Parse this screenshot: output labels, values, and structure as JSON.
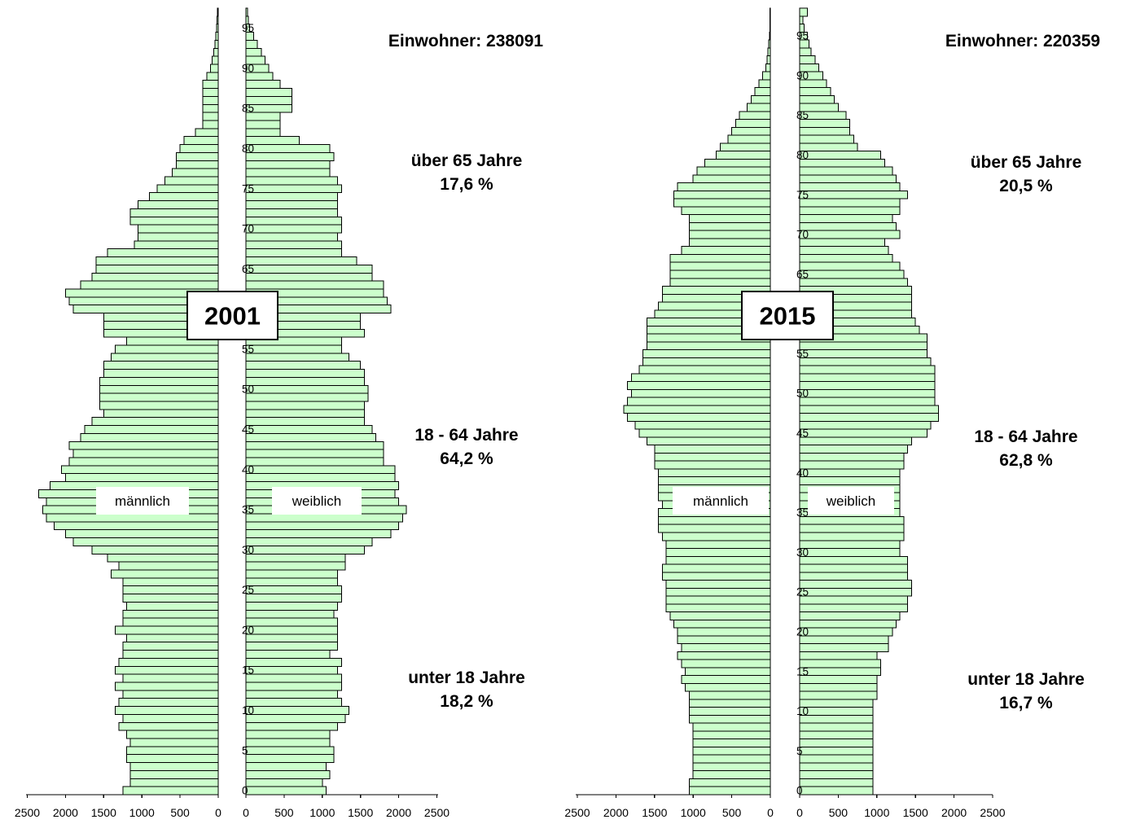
{
  "chart_data": [
    {
      "type": "bar",
      "orientation": "horizontal",
      "subtype": "population-pyramid",
      "year": "2001",
      "population_label": "Einwohner: 238091",
      "male_label": "männlich",
      "female_label": "weiblich",
      "age_groups": [
        {
          "label": "über 65 Jahre",
          "share": "17,6 %"
        },
        {
          "label": "18 - 64 Jahre",
          "share": "64,2 %"
        },
        {
          "label": "unter 18 Jahre",
          "share": "18,2 %"
        }
      ],
      "x_ticks_male": [
        "2500",
        "2000",
        "1500",
        "1000",
        "500",
        "0"
      ],
      "x_ticks_female": [
        "0",
        "500",
        "1000",
        "1500",
        "2000",
        "2500"
      ],
      "y_ticks": [
        "0",
        "5",
        "10",
        "15",
        "20",
        "25",
        "30",
        "35",
        "40",
        "45",
        "50",
        "55",
        "60",
        "65",
        "70",
        "75",
        "80",
        "85",
        "90",
        "95"
      ],
      "xlim": [
        0,
        2500
      ],
      "ylim": [
        0,
        99
      ],
      "male": [
        1250,
        1150,
        1150,
        1150,
        1200,
        1200,
        1150,
        1200,
        1300,
        1250,
        1350,
        1300,
        1250,
        1350,
        1250,
        1350,
        1300,
        1250,
        1250,
        1200,
        1350,
        1250,
        1250,
        1200,
        1250,
        1250,
        1250,
        1400,
        1300,
        1450,
        1650,
        1900,
        2000,
        2150,
        2250,
        2300,
        2250,
        2350,
        2200,
        2000,
        2050,
        1950,
        1900,
        1950,
        1800,
        1750,
        1650,
        1500,
        1550,
        1550,
        1550,
        1550,
        1500,
        1500,
        1400,
        1350,
        1200,
        1500,
        1500,
        1500,
        1900,
        1950,
        2000,
        1800,
        1650,
        1600,
        1600,
        1450,
        1100,
        1050,
        1050,
        1150,
        1150,
        1050,
        900,
        800,
        700,
        600,
        550,
        550,
        500,
        450,
        300,
        200,
        200,
        200,
        200,
        200,
        200,
        150,
        100,
        80,
        60,
        40,
        30,
        20,
        15,
        10
      ],
      "female": [
        1050,
        1000,
        1100,
        1050,
        1150,
        1150,
        1100,
        1100,
        1200,
        1300,
        1350,
        1250,
        1200,
        1250,
        1250,
        1200,
        1250,
        1100,
        1200,
        1200,
        1200,
        1200,
        1150,
        1200,
        1250,
        1250,
        1200,
        1200,
        1300,
        1300,
        1550,
        1650,
        1900,
        2000,
        2050,
        2100,
        2000,
        1950,
        2000,
        1950,
        1950,
        1800,
        1800,
        1800,
        1700,
        1650,
        1550,
        1550,
        1550,
        1600,
        1600,
        1550,
        1550,
        1500,
        1350,
        1250,
        1250,
        1550,
        1500,
        1500,
        1900,
        1850,
        1800,
        1800,
        1650,
        1650,
        1450,
        1250,
        1250,
        1200,
        1250,
        1250,
        1200,
        1200,
        1200,
        1250,
        1200,
        1100,
        1100,
        1150,
        1100,
        700,
        450,
        450,
        450,
        600,
        600,
        600,
        450,
        350,
        300,
        250,
        200,
        150,
        100,
        50,
        30,
        20,
        40
      ]
    },
    {
      "type": "bar",
      "orientation": "horizontal",
      "subtype": "population-pyramid",
      "year": "2015",
      "population_label": "Einwohner: 220359",
      "male_label": "männlich",
      "female_label": "weiblich",
      "age_groups": [
        {
          "label": "über 65 Jahre",
          "share": "20,5 %"
        },
        {
          "label": "18 - 64 Jahre",
          "share": "62,8 %"
        },
        {
          "label": "unter 18 Jahre",
          "share": "16,7 %"
        }
      ],
      "x_ticks_male": [
        "2500",
        "2000",
        "1500",
        "1000",
        "500",
        "0"
      ],
      "x_ticks_female": [
        "0",
        "500",
        "1000",
        "1500",
        "2000",
        "2500"
      ],
      "y_ticks": [
        "0",
        "5",
        "10",
        "15",
        "20",
        "25",
        "30",
        "35",
        "40",
        "45",
        "50",
        "55",
        "60",
        "65",
        "70",
        "75",
        "80",
        "85",
        "90",
        "95"
      ],
      "xlim": [
        0,
        2500
      ],
      "ylim": [
        0,
        99
      ],
      "male": [
        1050,
        1050,
        1000,
        1000,
        1000,
        1000,
        1000,
        1000,
        1000,
        1050,
        1050,
        1050,
        1050,
        1100,
        1150,
        1100,
        1150,
        1200,
        1150,
        1200,
        1200,
        1250,
        1300,
        1350,
        1350,
        1350,
        1350,
        1400,
        1400,
        1350,
        1350,
        1350,
        1400,
        1450,
        1450,
        1450,
        1400,
        1450,
        1450,
        1450,
        1450,
        1500,
        1500,
        1500,
        1600,
        1700,
        1750,
        1850,
        1900,
        1850,
        1800,
        1850,
        1800,
        1700,
        1650,
        1650,
        1600,
        1600,
        1600,
        1600,
        1500,
        1450,
        1400,
        1400,
        1300,
        1300,
        1300,
        1300,
        1150,
        1050,
        1050,
        1050,
        1050,
        1150,
        1250,
        1250,
        1200,
        1000,
        950,
        850,
        700,
        650,
        550,
        500,
        450,
        400,
        300,
        250,
        200,
        150,
        100,
        60,
        40,
        30,
        20,
        10,
        5,
        5,
        5
      ],
      "female": [
        950,
        950,
        950,
        950,
        950,
        950,
        950,
        950,
        950,
        950,
        950,
        950,
        1000,
        1000,
        1000,
        1050,
        1050,
        1000,
        1150,
        1150,
        1200,
        1250,
        1300,
        1400,
        1400,
        1450,
        1450,
        1400,
        1400,
        1400,
        1300,
        1300,
        1350,
        1350,
        1350,
        1300,
        1300,
        1300,
        1300,
        1300,
        1300,
        1350,
        1350,
        1400,
        1450,
        1650,
        1700,
        1800,
        1800,
        1750,
        1750,
        1750,
        1750,
        1750,
        1700,
        1650,
        1650,
        1650,
        1550,
        1500,
        1450,
        1450,
        1450,
        1450,
        1400,
        1350,
        1300,
        1200,
        1150,
        1100,
        1300,
        1250,
        1200,
        1300,
        1300,
        1400,
        1300,
        1250,
        1200,
        1100,
        1050,
        750,
        700,
        650,
        650,
        600,
        500,
        450,
        400,
        350,
        300,
        250,
        200,
        150,
        120,
        100,
        60,
        40,
        100
      ]
    }
  ]
}
